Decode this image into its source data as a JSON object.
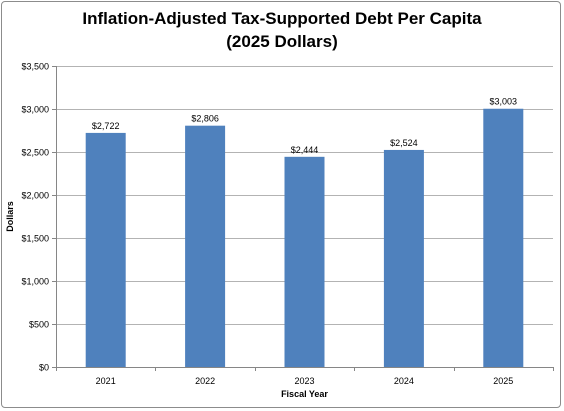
{
  "chart_data": {
    "type": "bar",
    "title": "Inflation-Adjusted Tax-Supported Debt Per Capita",
    "subtitle": "(2025 Dollars)",
    "xlabel": "Fiscal Year",
    "ylabel": "Dollars",
    "categories": [
      "2021",
      "2022",
      "2023",
      "2024",
      "2025"
    ],
    "values": [
      2722,
      2806,
      2444,
      2524,
      3003
    ],
    "data_labels": [
      "$2,722",
      "$2,806",
      "$2,444",
      "$2,524",
      "$3,003"
    ],
    "y_ticks": [
      0,
      500,
      1000,
      1500,
      2000,
      2500,
      3000,
      3500
    ],
    "y_tick_labels": [
      "$0",
      "$500",
      "$1,000",
      "$1,500",
      "$2,000",
      "$2,500",
      "$3,000",
      "$3,500"
    ],
    "ylim": [
      0,
      3500
    ],
    "grid": true,
    "legend": "none",
    "bar_color": "#4f81bd",
    "grid_color": "#b3b3b3"
  }
}
